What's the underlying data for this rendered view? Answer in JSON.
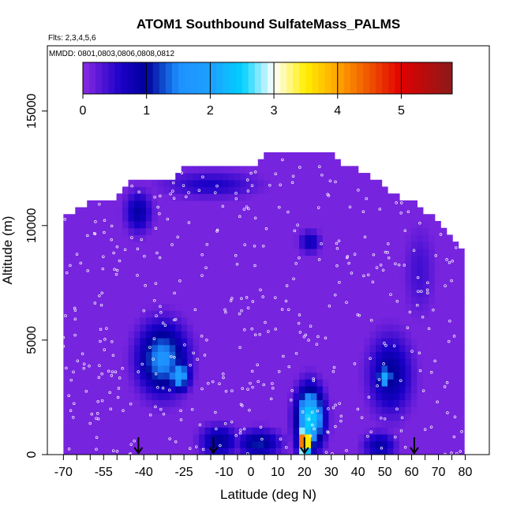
{
  "chart_data": {
    "type": "heatmap",
    "title": "ATOM1 Southbound SulfateMass_PALMS",
    "flights_note": "Flts: 2,3,4,5,6",
    "dates_note": "MMDD: 0801,0803,0806,0808,0812",
    "xlabel": "Latitude (deg N)",
    "ylabel": "Altitude (m)",
    "xlim": [
      -72,
      82
    ],
    "ylim": [
      0,
      17500
    ],
    "x_tick_labels": [
      "-70",
      "-55",
      "-40",
      "-25",
      "-10",
      "0",
      "10",
      "20",
      "30",
      "40",
      "50",
      "60",
      "70",
      "80"
    ],
    "x_tick_values": [
      -70,
      -55,
      -40,
      -25,
      -10,
      0,
      10,
      20,
      30,
      40,
      50,
      60,
      70,
      80
    ],
    "x_minor_ticks": [
      -65,
      -60,
      -50,
      -45,
      -35,
      -30,
      -20,
      -15,
      -5,
      5,
      15,
      25,
      35,
      45,
      55,
      65,
      75
    ],
    "y_tick_labels": [
      "0",
      "5000",
      "10000",
      "15000"
    ],
    "y_tick_values": [
      0,
      5000,
      10000,
      15000
    ],
    "colorbar": {
      "tick_labels": [
        "0",
        "1",
        "2",
        "3",
        "4",
        "5"
      ],
      "tick_values": [
        0,
        1,
        2,
        3,
        4,
        5
      ],
      "range": [
        0,
        5.8
      ],
      "stops": [
        {
          "v": 0.0,
          "c": "#8a2be2"
        },
        {
          "v": 0.6,
          "c": "#1a00c8"
        },
        {
          "v": 1.0,
          "c": "#00009a"
        },
        {
          "v": 1.5,
          "c": "#1e90ff"
        },
        {
          "v": 2.0,
          "c": "#1e9fff"
        },
        {
          "v": 2.5,
          "c": "#00d0ff"
        },
        {
          "v": 3.0,
          "c": "#ffffff"
        },
        {
          "v": 3.5,
          "c": "#ffee00"
        },
        {
          "v": 4.0,
          "c": "#ffa500"
        },
        {
          "v": 5.0,
          "c": "#e00000"
        },
        {
          "v": 5.8,
          "c": "#8b1a1a"
        }
      ]
    },
    "envelope": {
      "lat": [
        -70,
        -65,
        -60,
        -55,
        -50,
        -45,
        -40,
        -35,
        -30,
        -25,
        -20,
        -15,
        -10,
        -5,
        0,
        5,
        10,
        15,
        20,
        25,
        30,
        35,
        40,
        45,
        50,
        55,
        60,
        65,
        70,
        75,
        80
      ],
      "top_alt": [
        10500,
        10500,
        10900,
        11100,
        11100,
        11900,
        11900,
        11900,
        11900,
        12400,
        12400,
        12400,
        12400,
        12400,
        12400,
        13000,
        13000,
        13000,
        13000,
        13000,
        13000,
        12400,
        12400,
        11900,
        11600,
        11100,
        10900,
        10500,
        10000,
        9500,
        8500
      ]
    },
    "features": [
      {
        "name": "background",
        "lat": 0,
        "alt": 0,
        "value": 0.1
      },
      {
        "name": "upper-south-blue",
        "lat": -42,
        "alt": 10600,
        "value": 0.9
      },
      {
        "name": "upper-blue-band",
        "lat": -15,
        "alt": 11800,
        "value": 0.6
      },
      {
        "name": "mid-south-plume",
        "lat": -33,
        "alt": 4200,
        "value": 1.6
      },
      {
        "name": "mid-south-core",
        "lat": -27,
        "alt": 3500,
        "value": 2.0
      },
      {
        "name": "surface-south",
        "lat": -12,
        "alt": 600,
        "value": 1.0
      },
      {
        "name": "surface-equator",
        "lat": 3,
        "alt": 500,
        "value": 1.1
      },
      {
        "name": "tropical-peak",
        "lat": 20,
        "alt": 600,
        "value": 5.3
      },
      {
        "name": "tropical-column",
        "lat": 22,
        "alt": 1600,
        "value": 2.6
      },
      {
        "name": "upper-tropical",
        "lat": 22,
        "alt": 9300,
        "value": 0.8
      },
      {
        "name": "mid-north-blob",
        "lat": 50,
        "alt": 3400,
        "value": 2.1
      },
      {
        "name": "mid-north-plume",
        "lat": 52,
        "alt": 3500,
        "value": 1.0
      },
      {
        "name": "surface-north",
        "lat": 48,
        "alt": 400,
        "value": 0.9
      },
      {
        "name": "north-upper-lobe",
        "lat": 63,
        "alt": 8000,
        "value": 0.4
      }
    ],
    "flight_markers_lat": [
      -42,
      -14,
      20,
      61
    ]
  }
}
